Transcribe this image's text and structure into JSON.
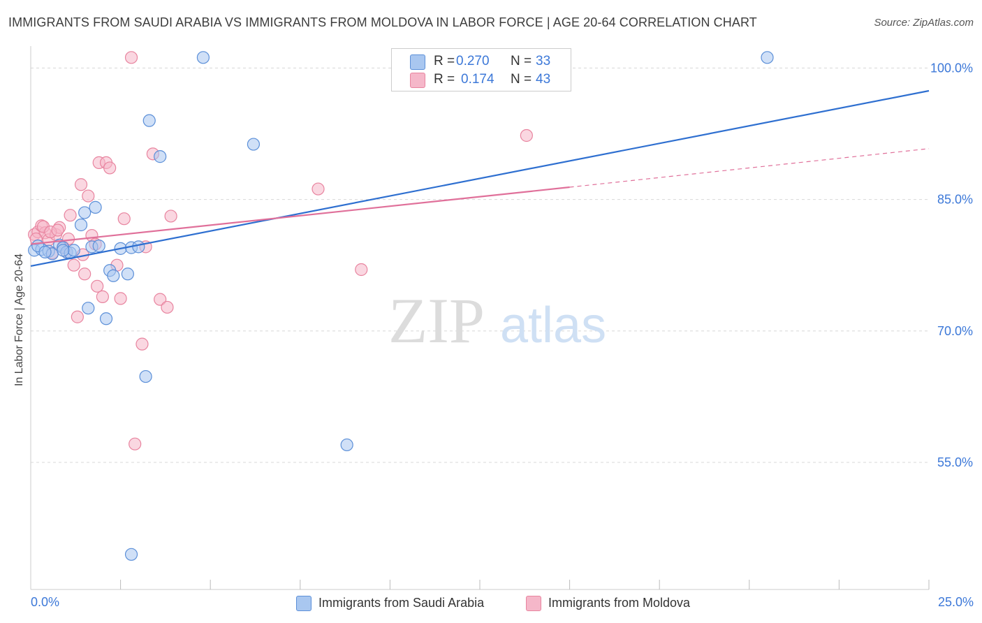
{
  "title": "IMMIGRANTS FROM SAUDI ARABIA VS IMMIGRANTS FROM MOLDOVA IN LABOR FORCE | AGE 20-64 CORRELATION CHART",
  "source": "Source: ZipAtlas.com",
  "watermark": {
    "zip": "ZIP",
    "atlas": "atlas"
  },
  "legend": {
    "r_label": "R =",
    "n_label": "N =",
    "entries": [
      {
        "r": "0.270",
        "n": "33"
      },
      {
        "r": "0.174",
        "n": "43"
      }
    ]
  },
  "colors": {
    "blue_fill": "#a9c7f0",
    "blue_stroke": "#5b8fd8",
    "blue_line": "#2e6fd0",
    "pink_fill": "#f5b7c9",
    "pink_stroke": "#e8849f",
    "pink_line": "#e0709a",
    "axis_text": "#3c78d8",
    "grid": "#d8d8d8"
  },
  "chart_data": {
    "type": "scatter",
    "title": "IMMIGRANTS FROM SAUDI ARABIA VS IMMIGRANTS FROM MOLDOVA IN LABOR FORCE | AGE 20-64 CORRELATION CHART",
    "xlabel": "",
    "ylabel": "In Labor Force | Age 20-64",
    "xlim": [
      0,
      25
    ],
    "ylim": [
      40.5,
      102.5
    ],
    "x_tick_labels": [
      {
        "value": 0,
        "label": "0.0%"
      },
      {
        "value": 25,
        "label": "25.0%"
      }
    ],
    "x_minor_ticks": [
      2.5,
      5,
      7.5,
      10,
      12.5,
      15,
      17.5,
      20,
      22.5,
      25
    ],
    "y_ticks": [
      {
        "value": 100,
        "label": "100.0%"
      },
      {
        "value": 85,
        "label": "85.0%"
      },
      {
        "value": 70,
        "label": "70.0%"
      },
      {
        "value": 55,
        "label": "55.0%"
      }
    ],
    "grid": true,
    "series": [
      {
        "name": "Immigrants from Saudi Arabia",
        "color": "#a9c7f0",
        "points": [
          [
            0.1,
            79.2
          ],
          [
            0.3,
            79.3
          ],
          [
            0.5,
            79.1
          ],
          [
            0.6,
            78.8
          ],
          [
            0.8,
            79.8
          ],
          [
            0.9,
            79.5
          ],
          [
            1.0,
            79.0
          ],
          [
            1.1,
            78.9
          ],
          [
            1.2,
            79.2
          ],
          [
            1.4,
            82.1
          ],
          [
            1.5,
            83.5
          ],
          [
            1.6,
            72.6
          ],
          [
            1.7,
            79.6
          ],
          [
            1.8,
            84.1
          ],
          [
            1.9,
            79.7
          ],
          [
            2.1,
            71.4
          ],
          [
            2.2,
            76.9
          ],
          [
            2.3,
            76.3
          ],
          [
            2.5,
            79.4
          ],
          [
            2.7,
            76.5
          ],
          [
            2.8,
            79.5
          ],
          [
            3.0,
            79.6
          ],
          [
            3.2,
            64.8
          ],
          [
            3.3,
            94.0
          ],
          [
            3.6,
            89.9
          ],
          [
            4.8,
            101.2
          ],
          [
            6.2,
            91.3
          ],
          [
            8.8,
            57.0
          ],
          [
            20.5,
            101.2
          ],
          [
            2.8,
            44.5
          ],
          [
            0.2,
            79.7
          ],
          [
            0.4,
            79.0
          ],
          [
            0.9,
            79.2
          ]
        ],
        "trend": {
          "x": [
            0,
            25
          ],
          "y": [
            77.4,
            97.4
          ]
        }
      },
      {
        "name": "Immigrants from Moldova",
        "color": "#f5b7c9",
        "points": [
          [
            0.1,
            81.0
          ],
          [
            0.2,
            81.3
          ],
          [
            0.3,
            82.0
          ],
          [
            0.4,
            81.2
          ],
          [
            0.5,
            80.4
          ],
          [
            0.6,
            78.9
          ],
          [
            0.7,
            81.0
          ],
          [
            0.8,
            81.8
          ],
          [
            0.9,
            79.6
          ],
          [
            1.0,
            79.0
          ],
          [
            1.1,
            83.2
          ],
          [
            1.2,
            77.5
          ],
          [
            1.3,
            71.6
          ],
          [
            1.4,
            86.7
          ],
          [
            1.5,
            76.5
          ],
          [
            1.6,
            85.4
          ],
          [
            1.7,
            80.9
          ],
          [
            1.8,
            79.9
          ],
          [
            1.9,
            89.2
          ],
          [
            2.0,
            73.9
          ],
          [
            2.1,
            89.2
          ],
          [
            2.2,
            88.6
          ],
          [
            2.4,
            77.5
          ],
          [
            2.5,
            73.7
          ],
          [
            2.6,
            82.8
          ],
          [
            2.8,
            101.2
          ],
          [
            2.9,
            57.1
          ],
          [
            3.1,
            68.5
          ],
          [
            3.2,
            79.6
          ],
          [
            3.4,
            90.2
          ],
          [
            3.6,
            73.6
          ],
          [
            3.8,
            72.7
          ],
          [
            3.9,
            83.1
          ],
          [
            0.15,
            80.5
          ],
          [
            0.35,
            81.9
          ],
          [
            0.55,
            81.3
          ],
          [
            1.05,
            80.5
          ],
          [
            1.45,
            78.7
          ],
          [
            1.85,
            75.1
          ],
          [
            8.0,
            86.2
          ],
          [
            9.2,
            77.0
          ],
          [
            13.8,
            92.3
          ],
          [
            0.75,
            81.5
          ]
        ],
        "trend": {
          "x": [
            0,
            15
          ],
          "y": [
            79.9,
            86.4
          ]
        },
        "trend_dashed": {
          "x": [
            15,
            25
          ],
          "y": [
            86.4,
            90.8
          ]
        }
      }
    ]
  }
}
